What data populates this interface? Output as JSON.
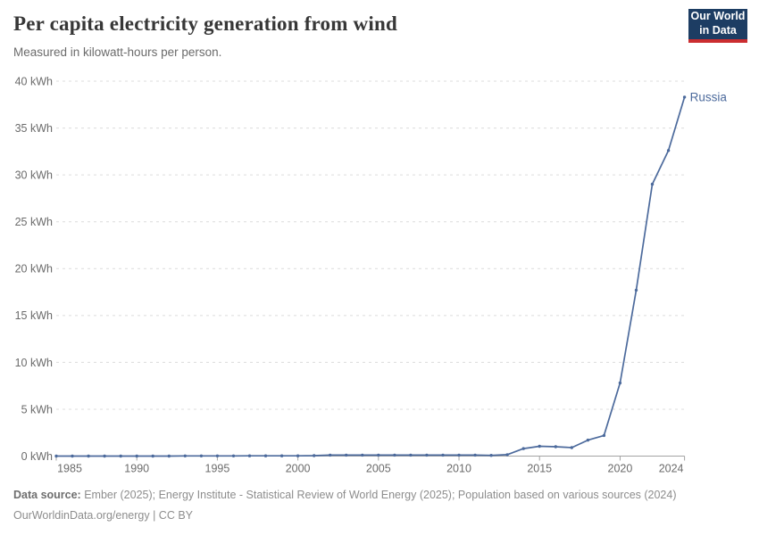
{
  "header": {
    "title": "Per capita electricity generation from wind",
    "subtitle": "Measured in kilowatt-hours per person.",
    "logo_line1": "Our World",
    "logo_line2": "in Data"
  },
  "footer": {
    "source_label": "Data source:",
    "source_text": " Ember (2025); Energy Institute - Statistical Review of World Energy (2025); Population based on various sources (2024)",
    "attribution": "OurWorldinData.org/energy | CC BY"
  },
  "colors": {
    "line": "#4c6a9c",
    "entity_label": "#4c6a9c",
    "grid": "#dcdcdc",
    "axis": "#a3a3a3",
    "tick_text": "#6b6b6b",
    "logo_bg": "#1d3d63",
    "logo_stripe": "#cb2d30"
  },
  "chart_data": {
    "type": "line",
    "title": "Per capita electricity generation from wind",
    "subtitle": "Measured in kilowatt-hours per person.",
    "xlabel": "",
    "ylabel": "kilowatt-hours per person",
    "unit": "kWh",
    "ylim": [
      0,
      40
    ],
    "yticks": [
      0,
      5,
      10,
      15,
      20,
      25,
      30,
      35,
      40
    ],
    "ytick_suffix": " kWh",
    "xticks": [
      1985,
      1990,
      1995,
      2000,
      2005,
      2010,
      2015,
      2020,
      2024
    ],
    "grid": true,
    "legend_position": "end-of-line-label",
    "x": [
      1985,
      1986,
      1987,
      1988,
      1989,
      1990,
      1991,
      1992,
      1993,
      1994,
      1995,
      1996,
      1997,
      1998,
      1999,
      2000,
      2001,
      2002,
      2003,
      2004,
      2005,
      2006,
      2007,
      2008,
      2009,
      2010,
      2011,
      2012,
      2013,
      2014,
      2015,
      2016,
      2017,
      2018,
      2019,
      2020,
      2021,
      2022,
      2023,
      2024
    ],
    "series": [
      {
        "name": "Russia",
        "values": [
          0,
          0,
          0,
          0,
          0,
          0,
          0,
          0,
          0.02,
          0.02,
          0.02,
          0.02,
          0.03,
          0.03,
          0.03,
          0.03,
          0.05,
          0.1,
          0.1,
          0.1,
          0.1,
          0.1,
          0.1,
          0.1,
          0.1,
          0.1,
          0.1,
          0.08,
          0.15,
          0.8,
          1.05,
          1.0,
          0.9,
          1.7,
          2.2,
          7.8,
          17.7,
          29.0,
          32.6,
          38.3
        ]
      }
    ]
  }
}
